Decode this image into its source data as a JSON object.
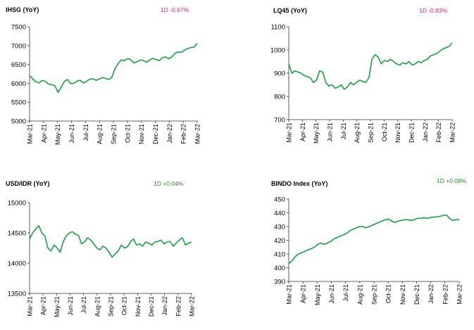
{
  "line_color": "#1a9e47",
  "axis_color": "#333333",
  "negative_color": "#e0245e",
  "positive_color": "#2e8b2e",
  "chart_data": [
    {
      "type": "line",
      "title": "IHSG (YoY)",
      "change": "1D -0.67%",
      "change_sign": "negative",
      "ylim": [
        5000,
        7500
      ],
      "yticks": [
        "5000",
        "5500",
        "6000",
        "6500",
        "7000",
        "7500"
      ],
      "xticks": [
        "Mar-21",
        "Apr-21",
        "May-21",
        "Jun-21",
        "Jul-21",
        "Aug-21",
        "Sep-21",
        "Oct-21",
        "Nov-21",
        "Dec-21",
        "Jan-22",
        "Feb-22",
        "Mar-22"
      ],
      "grid": false,
      "series": [
        {
          "values": [
            6200,
            6120,
            6040,
            6010,
            6080,
            6050,
            5980,
            5960,
            5940,
            5760,
            5900,
            6050,
            6100,
            5990,
            6000,
            6060,
            6080,
            6010,
            6050,
            6110,
            6120,
            6080,
            6110,
            6150,
            6130,
            6100,
            6160,
            6380,
            6520,
            6620,
            6600,
            6660,
            6620,
            6540,
            6570,
            6620,
            6600,
            6560,
            6620,
            6660,
            6630,
            6600,
            6680,
            6700,
            6650,
            6700,
            6800,
            6830,
            6820,
            6880,
            6920,
            6950,
            6960,
            7060
          ]
        }
      ]
    },
    {
      "type": "line",
      "title": "LQ45 (YoY)",
      "change": "1D -0.83%",
      "change_sign": "negative",
      "ylim": [
        700,
        1100
      ],
      "yticks": [
        "700",
        "800",
        "900",
        "1000",
        "1100"
      ],
      "xticks": [
        "Mar-21",
        "Apr-21",
        "May-21",
        "Jun-21",
        "Jul-21",
        "Aug-21",
        "Sep-21",
        "Oct-21",
        "Nov-21",
        "Dec-21",
        "Jan-22",
        "Feb-22",
        "Mar-22"
      ],
      "grid": false,
      "series": [
        {
          "values": [
            940,
            900,
            910,
            905,
            900,
            890,
            885,
            880,
            860,
            870,
            910,
            905,
            860,
            845,
            850,
            835,
            840,
            850,
            830,
            840,
            860,
            850,
            860,
            870,
            865,
            860,
            880,
            960,
            980,
            970,
            940,
            955,
            950,
            960,
            950,
            940,
            935,
            945,
            940,
            950,
            935,
            940,
            950,
            945,
            955,
            960,
            975,
            980,
            985,
            995,
            1005,
            1010,
            1015,
            1030
          ]
        }
      ]
    },
    {
      "type": "line",
      "title": "USD/IDR  (YoY)",
      "change": "1D +0.04%",
      "change_sign": "positive",
      "ylim": [
        13500,
        15000
      ],
      "yticks": [
        "13500",
        "14000",
        "14500",
        "15000"
      ],
      "xticks": [
        "Mar-21",
        "Apr-21",
        "May-21",
        "Jun-21",
        "Jul-21",
        "Aug-21",
        "Sep-21",
        "Oct-21",
        "Nov-21",
        "Dec-21",
        "Jan-22",
        "Feb-22",
        "Mar-22"
      ],
      "grid": false,
      "series": [
        {
          "values": [
            14400,
            14500,
            14560,
            14620,
            14500,
            14450,
            14250,
            14200,
            14300,
            14250,
            14180,
            14350,
            14450,
            14500,
            14520,
            14480,
            14460,
            14320,
            14350,
            14420,
            14380,
            14320,
            14250,
            14220,
            14280,
            14250,
            14180,
            14100,
            14150,
            14200,
            14300,
            14250,
            14270,
            14350,
            14400,
            14300,
            14320,
            14280,
            14350,
            14330,
            14300,
            14350,
            14360,
            14380,
            14320,
            14350,
            14360,
            14280,
            14330,
            14380,
            14420,
            14300,
            14330,
            14350
          ]
        }
      ]
    },
    {
      "type": "line",
      "title": "BINDO Index (YoY)",
      "change": "1D +0.08%",
      "change_sign": "positive",
      "ylim": [
        390,
        450
      ],
      "yticks": [
        "390",
        "400",
        "410",
        "420",
        "430",
        "440",
        "450"
      ],
      "xticks": [
        "Mar-21",
        "Apr-21",
        "May-21",
        "Jun-21",
        "Jul-21",
        "Aug-21",
        "Sep-21",
        "Oct-21",
        "Nov-21",
        "Dec-21",
        "Jan-22",
        "Feb-22",
        "Mar-22"
      ],
      "grid": false,
      "series": [
        {
          "values": [
            403,
            405,
            408,
            410,
            411,
            412,
            413,
            414,
            415,
            417,
            418,
            417,
            418,
            419,
            421,
            422,
            423,
            424,
            425,
            427,
            428,
            429,
            430,
            430,
            429,
            430,
            431,
            432,
            433,
            434,
            435,
            435.5,
            434,
            433,
            434,
            434.5,
            435,
            435,
            434.5,
            435,
            436,
            436,
            436.5,
            436,
            436.5,
            437,
            437,
            437.5,
            438,
            438.5,
            436,
            434.5,
            435,
            435.2
          ]
        }
      ]
    }
  ]
}
